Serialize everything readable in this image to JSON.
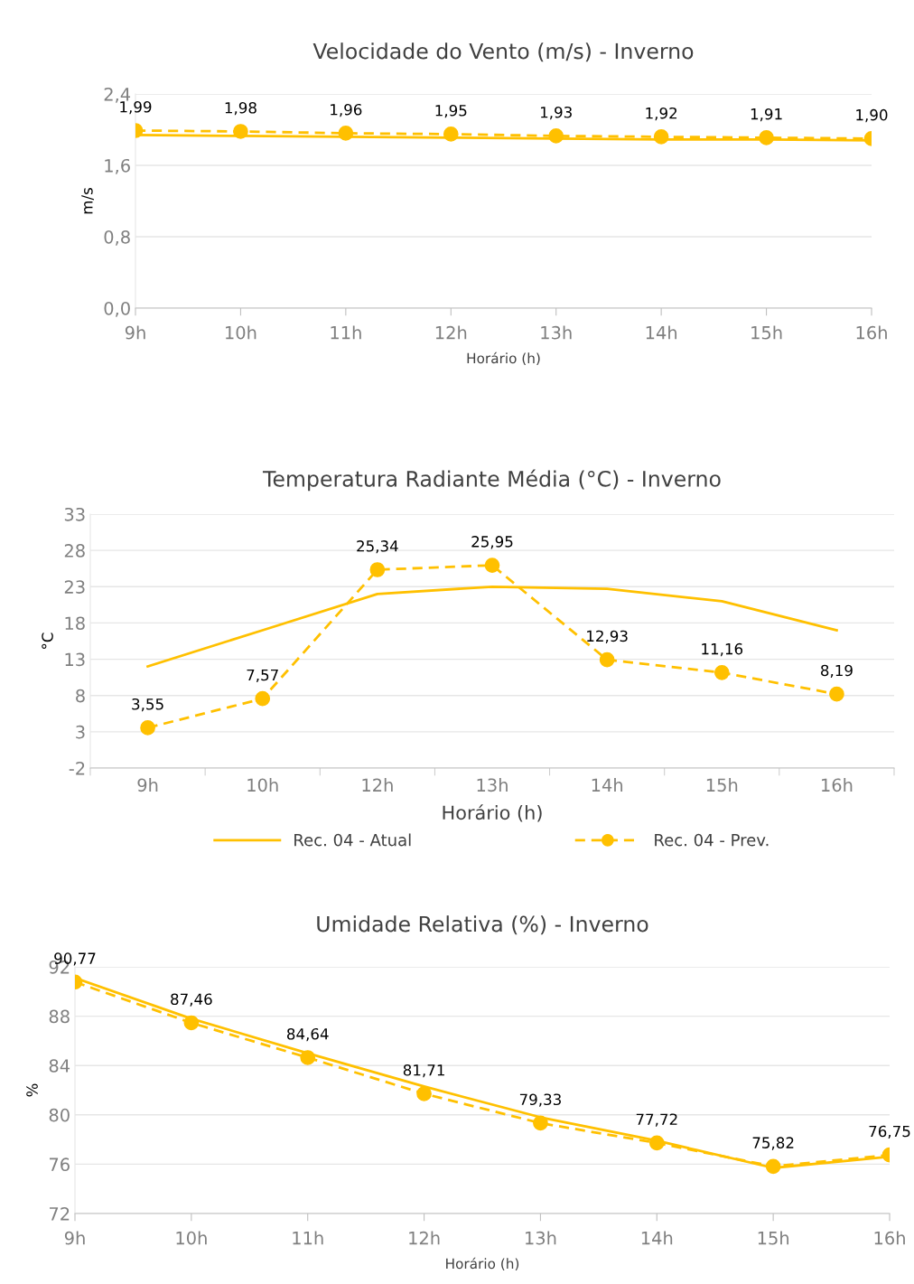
{
  "chart_data": [
    {
      "type": "line",
      "title": "Velocidade do Vento (m/s) - Inverno",
      "xlabel": "Horário (h)",
      "ylabel": "m/s",
      "categories": [
        "9h",
        "10h",
        "11h",
        "12h",
        "13h",
        "14h",
        "15h",
        "16h"
      ],
      "ylim": [
        0,
        2.4
      ],
      "yticks": [
        {
          "value": 0,
          "label": "0,0"
        },
        {
          "value": 0.8,
          "label": "0,8"
        },
        {
          "value": 1.6,
          "label": "1,6"
        },
        {
          "value": 2.4,
          "label": "2,4"
        }
      ],
      "grid": "y",
      "legend": false,
      "series": [
        {
          "color": "#ffc000",
          "marker": "none",
          "line_style": "solid",
          "values": [
            1.94,
            1.93,
            1.92,
            1.91,
            1.9,
            1.89,
            1.89,
            1.88
          ]
        },
        {
          "color": "#ffc000",
          "marker": "circle",
          "line_style": "dashed",
          "values": [
            1.99,
            1.98,
            1.96,
            1.95,
            1.93,
            1.92,
            1.91,
            1.9
          ],
          "value_labels": [
            "1,99",
            "1,98",
            "1,96",
            "1,95",
            "1,93",
            "1,92",
            "1,91",
            "1,90"
          ]
        }
      ]
    },
    {
      "type": "line",
      "title": "Temperatura Radiante Média (°C) - Inverno",
      "xlabel": "Horário (h)",
      "ylabel": "°C",
      "categories": [
        "9h",
        "10h",
        "12h",
        "13h",
        "14h",
        "15h",
        "16h"
      ],
      "ylim": [
        -2,
        33
      ],
      "yticks": [
        -2,
        3,
        8,
        13,
        18,
        23,
        28,
        33
      ],
      "grid": "y",
      "legend": "bottom",
      "series": [
        {
          "name": "Rec. 04 - Atual",
          "color": "#ffc000",
          "marker": "none",
          "line_style": "solid",
          "values": [
            12,
            17,
            22,
            23,
            22.7,
            21,
            17
          ]
        },
        {
          "name": "Rec. 04 - Prev.",
          "color": "#ffc000",
          "marker": "circle",
          "line_style": "dashed",
          "values": [
            3.55,
            7.57,
            25.34,
            25.95,
            12.93,
            11.16,
            8.19
          ],
          "value_labels": [
            "3,55",
            "7,57",
            "25,34",
            "25,95",
            "12,93",
            "11,16",
            "8,19"
          ]
        }
      ]
    },
    {
      "type": "line",
      "title": "Umidade Relativa (%) - Inverno",
      "xlabel": "Horário (h)",
      "ylabel": "%",
      "categories": [
        "9h",
        "10h",
        "11h",
        "12h",
        "13h",
        "14h",
        "15h",
        "16h"
      ],
      "ylim": [
        72,
        92
      ],
      "yticks": [
        72,
        76,
        80,
        84,
        88,
        92
      ],
      "grid": "y",
      "legend": false,
      "series": [
        {
          "color": "#ffc000",
          "marker": "none",
          "line_style": "solid",
          "values": [
            91.1,
            87.8,
            85.0,
            82.3,
            79.8,
            77.9,
            75.7,
            76.6
          ]
        },
        {
          "color": "#ffc000",
          "marker": "circle",
          "line_style": "dashed",
          "values": [
            90.77,
            87.46,
            84.64,
            81.71,
            79.33,
            77.72,
            75.82,
            76.75
          ],
          "value_labels": [
            "90,77",
            "87,46",
            "84,64",
            "81,71",
            "79,33",
            "77,72",
            "75,82",
            "76,75"
          ]
        }
      ]
    }
  ]
}
